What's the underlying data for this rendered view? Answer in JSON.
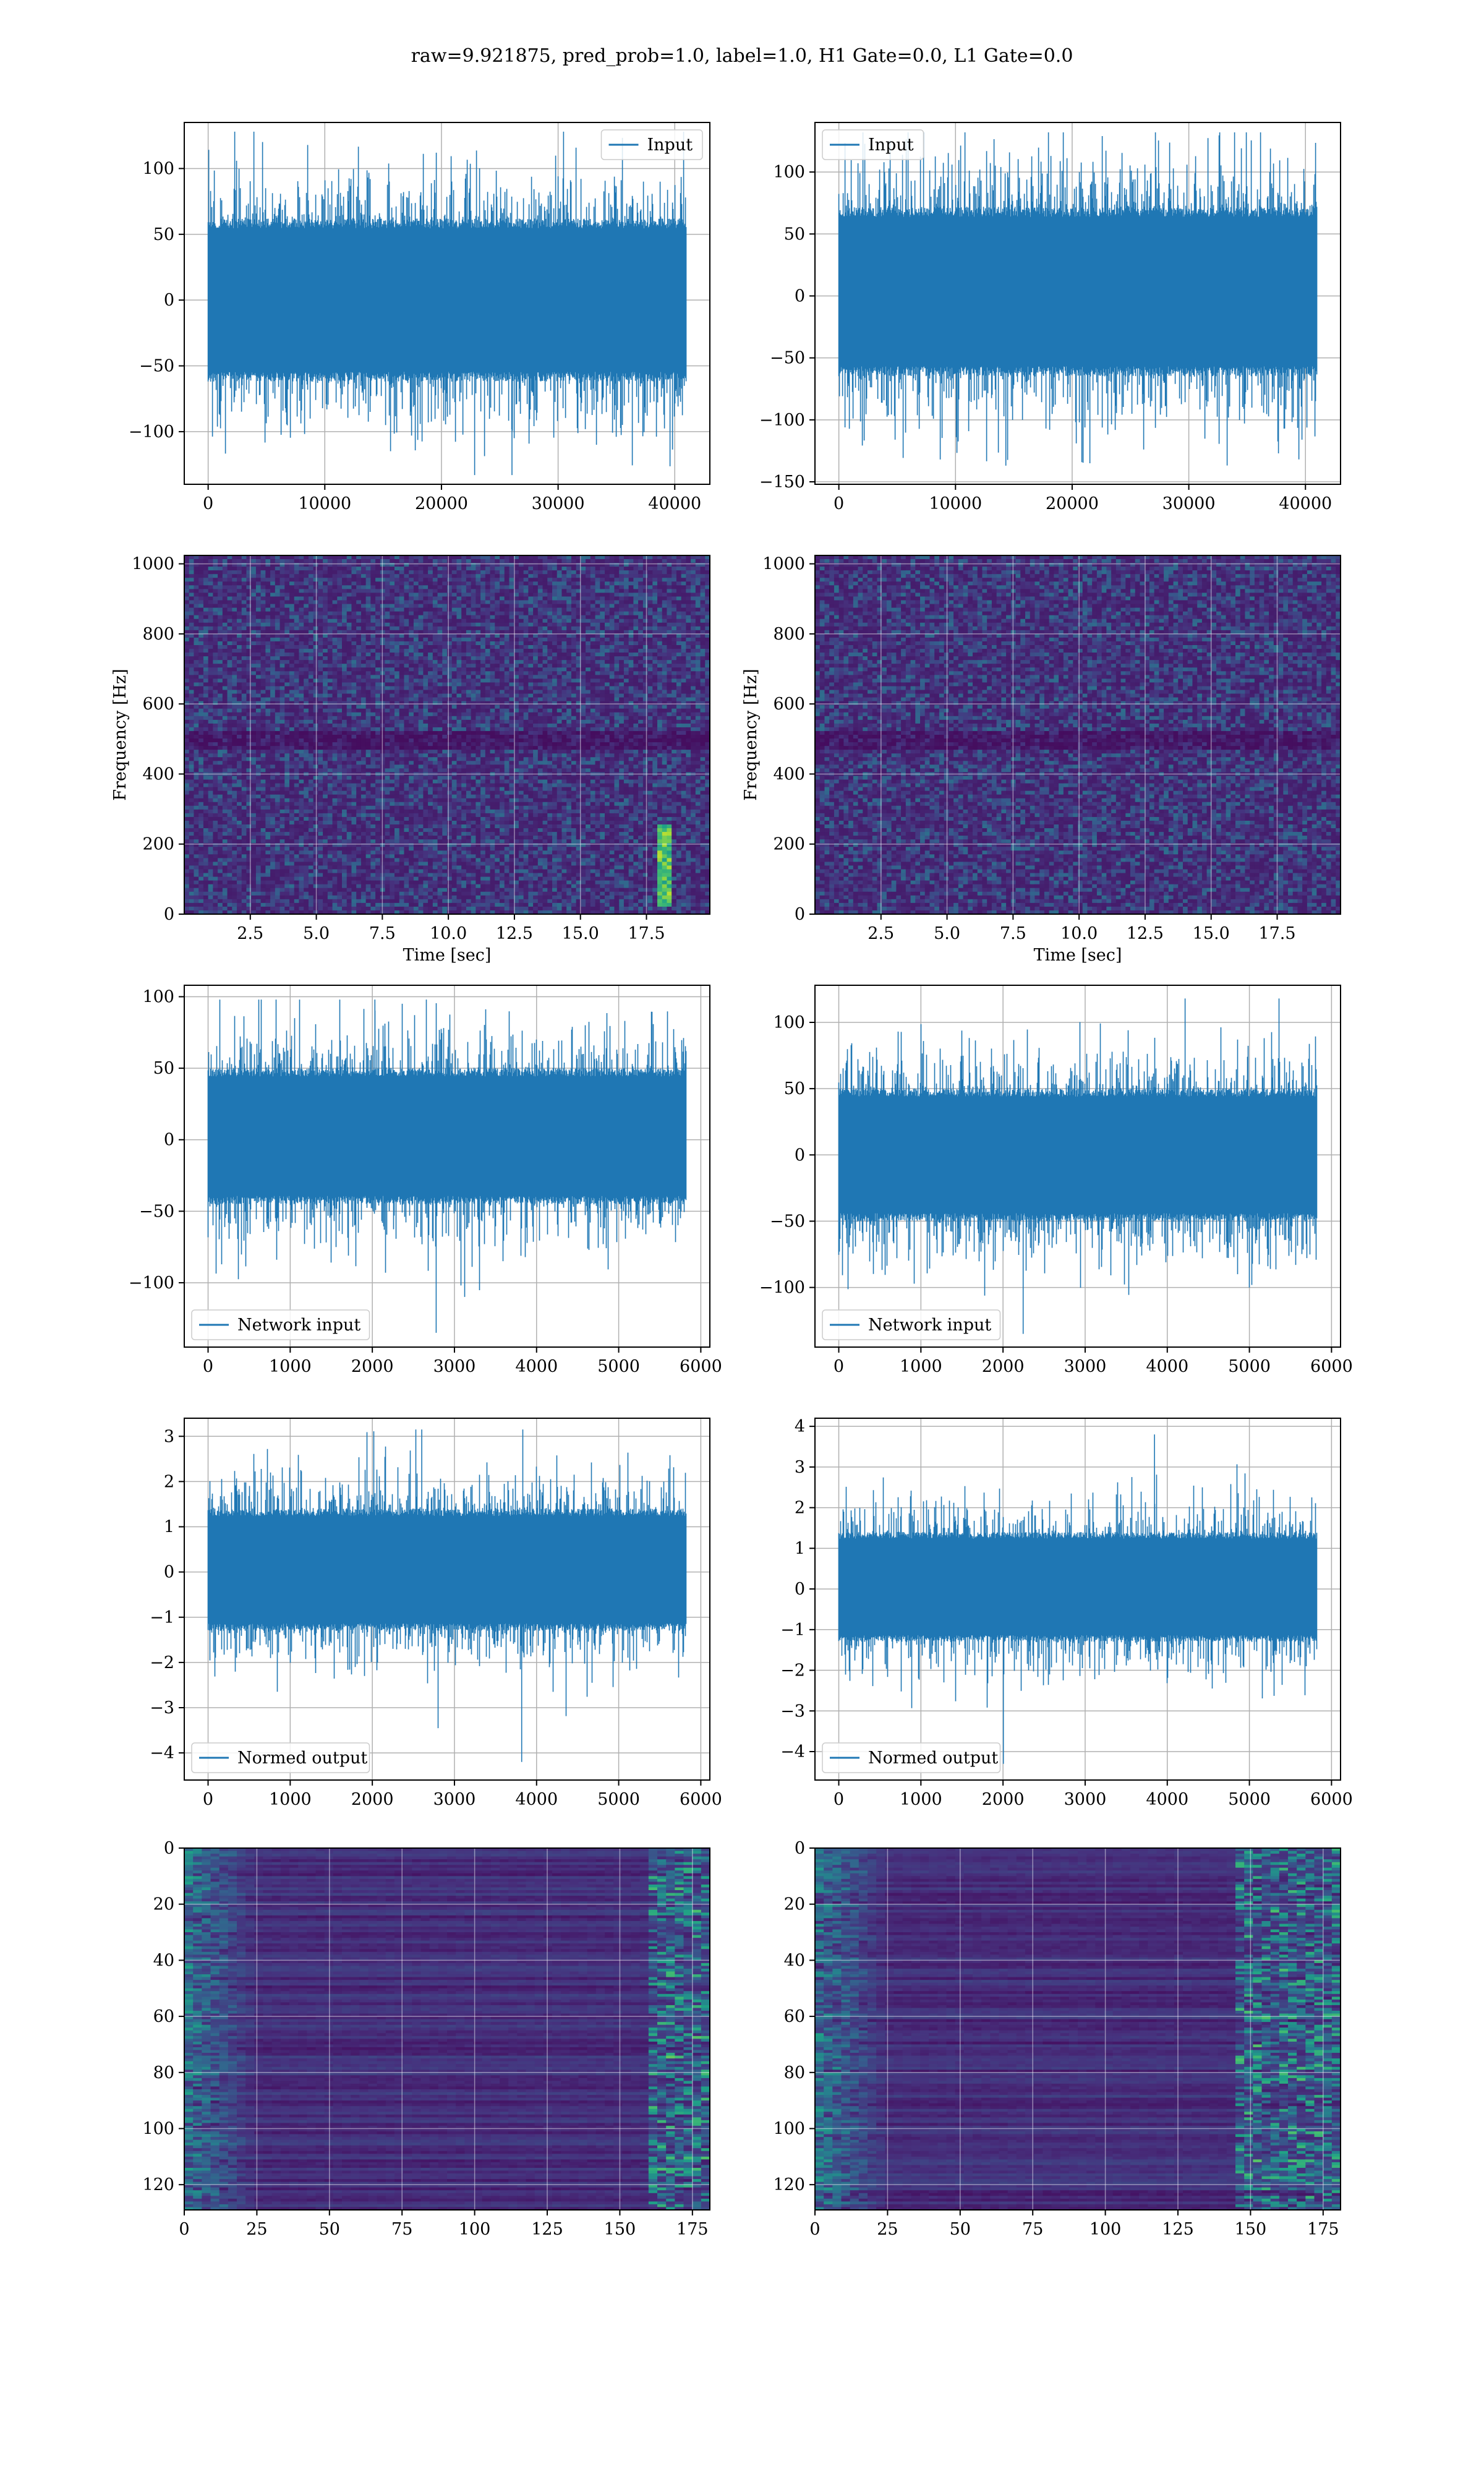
{
  "figure": {
    "suptitle": "raw=9.921875, pred_prob=1.0, label=1.0, H1 Gate=0.0, L1 Gate=0.0"
  },
  "colors": {
    "line": "#1f77b4",
    "grid": "#b0b0b0",
    "viridis": [
      "#440154",
      "#46327e",
      "#365c8d",
      "#277f8e",
      "#1fa187",
      "#4ac16d",
      "#a0da39",
      "#fde725"
    ]
  },
  "chart_data": [
    {
      "id": "h1-input",
      "type": "line",
      "col": 0,
      "row": 0,
      "legend": "Input",
      "legend_loc": "top-right",
      "xlim": [
        -2048,
        43008
      ],
      "ylim": [
        -140,
        135
      ],
      "xticks": [
        0,
        10000,
        20000,
        30000,
        40000
      ],
      "yticks": [
        -100,
        -50,
        0,
        50,
        100
      ],
      "signal": {
        "n": 40960,
        "x_max": 40960,
        "core": [
          -62,
          62
        ],
        "peaks": [
          -133,
          128
        ]
      },
      "xlabel": "",
      "ylabel": ""
    },
    {
      "id": "l1-input",
      "type": "line",
      "col": 1,
      "row": 0,
      "legend": "Input",
      "legend_loc": "top-left",
      "xlim": [
        -2048,
        43008
      ],
      "ylim": [
        -152,
        140
      ],
      "xticks": [
        0,
        10000,
        20000,
        30000,
        40000
      ],
      "yticks": [
        -150,
        -100,
        -50,
        0,
        50,
        100
      ],
      "signal": {
        "n": 40960,
        "x_max": 40960,
        "core": [
          -65,
          72
        ],
        "peaks": [
          -137,
          132
        ]
      },
      "xlabel": "",
      "ylabel": ""
    },
    {
      "id": "h1-spectrogram",
      "type": "heatmap",
      "col": 0,
      "row": 1,
      "xlim": [
        0,
        19.9
      ],
      "ylim": [
        0,
        1024
      ],
      "xticks": [
        2.5,
        5.0,
        7.5,
        10.0,
        12.5,
        15.0,
        17.5
      ],
      "yticks": [
        0,
        200,
        400,
        600,
        800,
        1000
      ],
      "xlabel": "Time [sec]",
      "ylabel": "Frequency [Hz]",
      "features": {
        "dark_band": [
          470,
          520
        ],
        "chirp": {
          "t": 18.2,
          "f": [
            20,
            260
          ]
        }
      }
    },
    {
      "id": "l1-spectrogram",
      "type": "heatmap",
      "col": 1,
      "row": 1,
      "xlim": [
        0,
        19.9
      ],
      "ylim": [
        0,
        1024
      ],
      "xticks": [
        2.5,
        5.0,
        7.5,
        10.0,
        12.5,
        15.0,
        17.5
      ],
      "yticks": [
        0,
        200,
        400,
        600,
        800,
        1000
      ],
      "xlabel": "Time [sec]",
      "ylabel": "Frequency [Hz]",
      "features": {
        "dark_band": [
          470,
          520
        ]
      }
    },
    {
      "id": "h1-network-input",
      "type": "line",
      "col": 0,
      "row": 2,
      "legend": "Network input",
      "legend_loc": "bottom-left",
      "xlim": [
        -290,
        6110
      ],
      "ylim": [
        -145,
        108
      ],
      "xticks": [
        0,
        1000,
        2000,
        3000,
        4000,
        5000,
        6000
      ],
      "yticks": [
        -100,
        -50,
        0,
        50,
        100
      ],
      "signal": {
        "n": 5820,
        "x_max": 5820,
        "core": [
          -45,
          50
        ],
        "peaks": [
          -135,
          98
        ]
      },
      "xlabel": "",
      "ylabel": ""
    },
    {
      "id": "l1-network-input",
      "type": "line",
      "col": 1,
      "row": 2,
      "legend": "Network input",
      "legend_loc": "bottom-left",
      "xlim": [
        -290,
        6110
      ],
      "ylim": [
        -145,
        128
      ],
      "xticks": [
        0,
        1000,
        2000,
        3000,
        4000,
        5000,
        6000
      ],
      "yticks": [
        -100,
        -50,
        0,
        50,
        100
      ],
      "signal": {
        "n": 5820,
        "x_max": 5820,
        "core": [
          -50,
          50
        ],
        "peaks": [
          -135,
          118
        ]
      },
      "xlabel": "",
      "ylabel": ""
    },
    {
      "id": "h1-normed-output",
      "type": "line",
      "col": 0,
      "row": 3,
      "legend": "Normed output",
      "legend_loc": "bottom-left",
      "xlim": [
        -290,
        6110
      ],
      "ylim": [
        -4.6,
        3.4
      ],
      "xticks": [
        0,
        1000,
        2000,
        3000,
        4000,
        5000,
        6000
      ],
      "yticks": [
        -4,
        -3,
        -2,
        -1,
        0,
        1,
        2,
        3
      ],
      "signal": {
        "n": 5820,
        "x_max": 5820,
        "core": [
          -1.3,
          1.4
        ],
        "peaks": [
          -4.2,
          3.15
        ]
      },
      "xlabel": "",
      "ylabel": ""
    },
    {
      "id": "l1-normed-output",
      "type": "line",
      "col": 1,
      "row": 3,
      "legend": "Normed output",
      "legend_loc": "bottom-left",
      "xlim": [
        -290,
        6110
      ],
      "ylim": [
        -4.7,
        4.2
      ],
      "xticks": [
        0,
        1000,
        2000,
        3000,
        4000,
        5000,
        6000
      ],
      "yticks": [
        -4,
        -3,
        -2,
        -1,
        0,
        1,
        2,
        3,
        4
      ],
      "signal": {
        "n": 5820,
        "x_max": 5820,
        "core": [
          -1.3,
          1.4
        ],
        "peaks": [
          -4.3,
          3.8
        ]
      },
      "xlabel": "",
      "ylabel": ""
    },
    {
      "id": "h1-feature-map",
      "type": "heatmap",
      "col": 0,
      "row": 4,
      "xlim": [
        0,
        181
      ],
      "ylim": [
        129,
        0
      ],
      "xticks": [
        0,
        25,
        50,
        75,
        100,
        125,
        150,
        175
      ],
      "yticks": [
        0,
        20,
        40,
        60,
        80,
        100,
        120
      ],
      "xlabel": "",
      "ylabel": "",
      "features": {
        "rows": 129,
        "cols": 181,
        "hot_columns": [
          160,
          181
        ],
        "left_edge": [
          0,
          25
        ]
      }
    },
    {
      "id": "l1-feature-map",
      "type": "heatmap",
      "col": 1,
      "row": 4,
      "xlim": [
        0,
        181
      ],
      "ylim": [
        129,
        0
      ],
      "xticks": [
        0,
        25,
        50,
        75,
        100,
        125,
        150,
        175
      ],
      "yticks": [
        0,
        20,
        40,
        60,
        80,
        100,
        120
      ],
      "xlabel": "",
      "ylabel": "",
      "features": {
        "rows": 129,
        "cols": 181,
        "hot_columns": [
          145,
          175
        ],
        "left_edge": [
          0,
          25
        ]
      }
    }
  ]
}
